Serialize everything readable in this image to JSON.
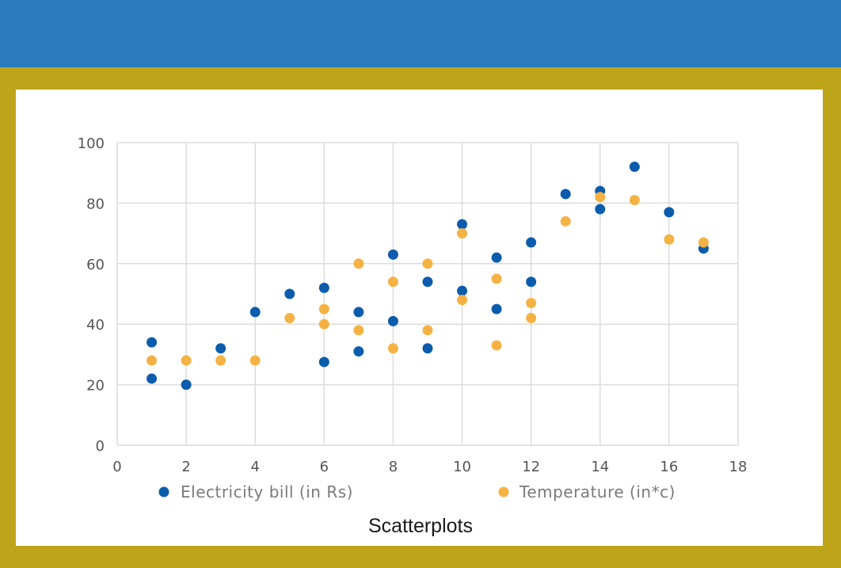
{
  "caption": "Scatterplots",
  "colors": {
    "top_band": "#2b7bbd",
    "frame": "#bea419",
    "series_blue": "#0b5cad",
    "series_orange": "#f5b244"
  },
  "chart_data": {
    "type": "scatter",
    "title": "",
    "xlabel": "",
    "ylabel": "",
    "xlim": [
      0,
      18
    ],
    "ylim": [
      0,
      100
    ],
    "x_ticks": [
      "0",
      "2",
      "4",
      "6",
      "8",
      "10",
      "12",
      "14",
      "16",
      "18"
    ],
    "y_ticks": [
      "0",
      "20",
      "40",
      "60",
      "80",
      "100"
    ],
    "grid": true,
    "legend_position": "bottom",
    "series": [
      {
        "name": "Electricity bill (in Rs)",
        "color": "#0b5cad",
        "points": [
          [
            1,
            34
          ],
          [
            1,
            22
          ],
          [
            2,
            20
          ],
          [
            3,
            32
          ],
          [
            4,
            44
          ],
          [
            5,
            50
          ],
          [
            6,
            52
          ],
          [
            6,
            27.5
          ],
          [
            7,
            44
          ],
          [
            7,
            31
          ],
          [
            8,
            63
          ],
          [
            8,
            41
          ],
          [
            9,
            54
          ],
          [
            9,
            32
          ],
          [
            10,
            73
          ],
          [
            10,
            51
          ],
          [
            11,
            62
          ],
          [
            11,
            45
          ],
          [
            12,
            67
          ],
          [
            12,
            54
          ],
          [
            13,
            83
          ],
          [
            14,
            84
          ],
          [
            14,
            78
          ],
          [
            15,
            92
          ],
          [
            16,
            77
          ],
          [
            17,
            65
          ]
        ]
      },
      {
        "name": "Temperature (in*c)",
        "color": "#f5b244",
        "points": [
          [
            1,
            28
          ],
          [
            2,
            28
          ],
          [
            3,
            28
          ],
          [
            4,
            28
          ],
          [
            5,
            42
          ],
          [
            6,
            45
          ],
          [
            6,
            40
          ],
          [
            7,
            60
          ],
          [
            7,
            38
          ],
          [
            8,
            54
          ],
          [
            8,
            32
          ],
          [
            9,
            60
          ],
          [
            9,
            38
          ],
          [
            10,
            70
          ],
          [
            10,
            48
          ],
          [
            11,
            55
          ],
          [
            11,
            33
          ],
          [
            12,
            47
          ],
          [
            12,
            42
          ],
          [
            13,
            74
          ],
          [
            14,
            82
          ],
          [
            15,
            81
          ],
          [
            16,
            68
          ],
          [
            17,
            67
          ]
        ]
      }
    ]
  }
}
